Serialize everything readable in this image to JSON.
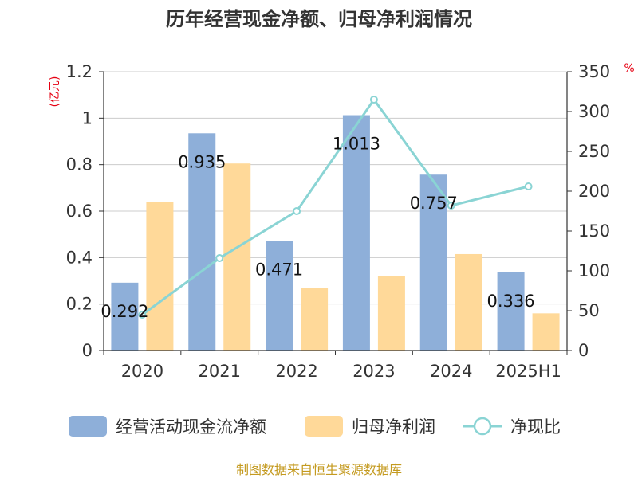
{
  "title": "历年经营现金净额、归母净利润情况",
  "source": "制图数据来自恒生聚源数据库",
  "colors": {
    "cash": "#8eafd9",
    "profit": "#ffd999",
    "ratio": "#8ad4d4",
    "unit": "#e60012",
    "source": "#c49a1f"
  },
  "chart_data": {
    "type": "bar",
    "categories": [
      "2020",
      "2021",
      "2022",
      "2023",
      "2024",
      "2025H1"
    ],
    "y_left": {
      "unit": "(亿元)",
      "ylim": [
        0,
        1.2
      ],
      "ticks": [
        "0",
        "0.2",
        "0.4",
        "0.6",
        "0.8",
        "1",
        "1.2"
      ]
    },
    "y_right": {
      "unit": "%",
      "ylim": [
        0,
        350
      ],
      "ticks": [
        "0",
        "50",
        "100",
        "150",
        "200",
        "250",
        "300",
        "350"
      ]
    },
    "series": [
      {
        "name": "经营活动现金流净额",
        "type": "bar",
        "axis": "left",
        "values": [
          0.292,
          0.935,
          0.471,
          1.013,
          0.757,
          0.336
        ],
        "labels": [
          "0.292",
          "0.935",
          "0.471",
          "1.013",
          "0.757",
          "0.336"
        ]
      },
      {
        "name": "归母净利润",
        "type": "bar",
        "axis": "left",
        "values": [
          0.64,
          0.805,
          0.27,
          0.32,
          0.415,
          0.16
        ]
      },
      {
        "name": "净现比",
        "type": "line",
        "axis": "right",
        "values": [
          45,
          116,
          175,
          315,
          182,
          206
        ]
      }
    ],
    "grid": true,
    "legend": "bottom"
  }
}
